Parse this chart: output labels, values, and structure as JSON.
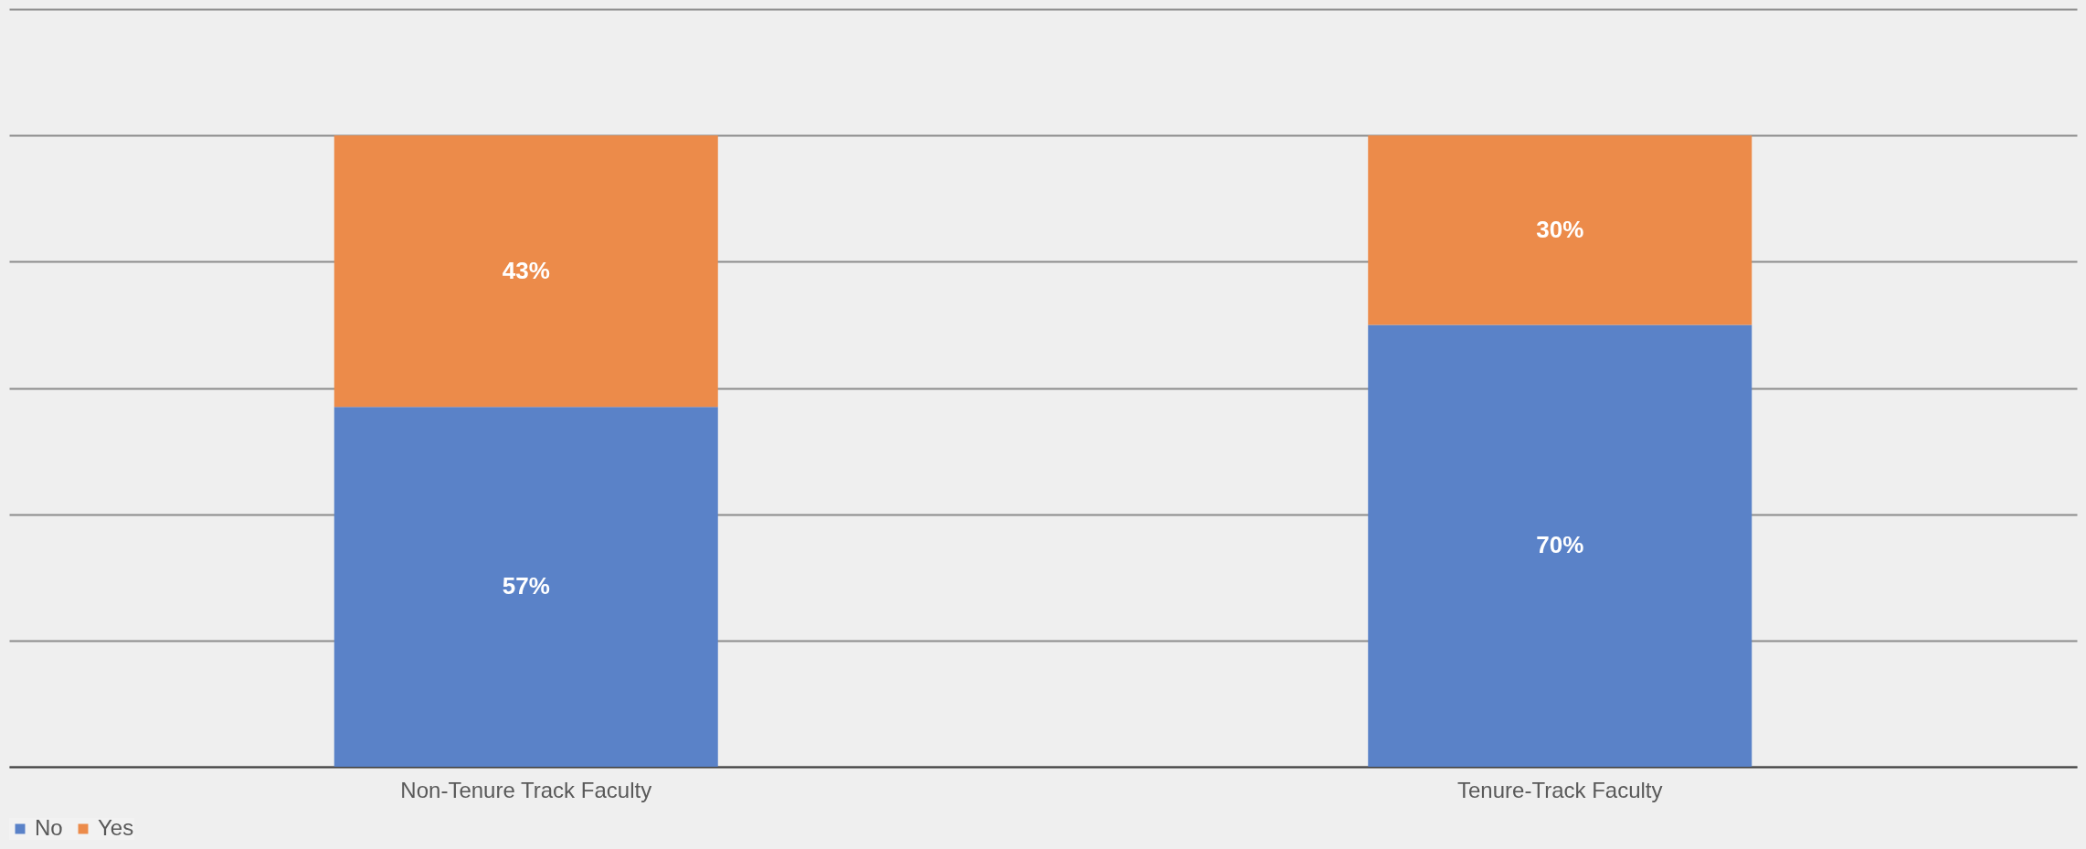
{
  "chart_data": {
    "type": "bar",
    "stacked": true,
    "categories": [
      "Non-Tenure Track Faculty",
      "Tenure-Track Faculty"
    ],
    "series": [
      {
        "name": "No",
        "color": "#5a82c8",
        "values": [
          57,
          70
        ],
        "value_labels": [
          "57%",
          "70%"
        ]
      },
      {
        "name": "Yes",
        "color": "#ec8b4a",
        "values": [
          43,
          30
        ],
        "value_labels": [
          "43%",
          "30%"
        ]
      }
    ],
    "ylim": [
      0,
      120
    ],
    "yticks": [
      {
        "value": 0,
        "label": null
      },
      {
        "value": 20,
        "label": null
      },
      {
        "value": 40,
        "label": null
      },
      {
        "value": 60,
        "label": null
      },
      {
        "value": 80,
        "label": null
      },
      {
        "value": 100,
        "label": null
      },
      {
        "value": 120,
        "label": null
      }
    ],
    "grid": "y",
    "tick_labels": "x",
    "legend": "bottom"
  }
}
